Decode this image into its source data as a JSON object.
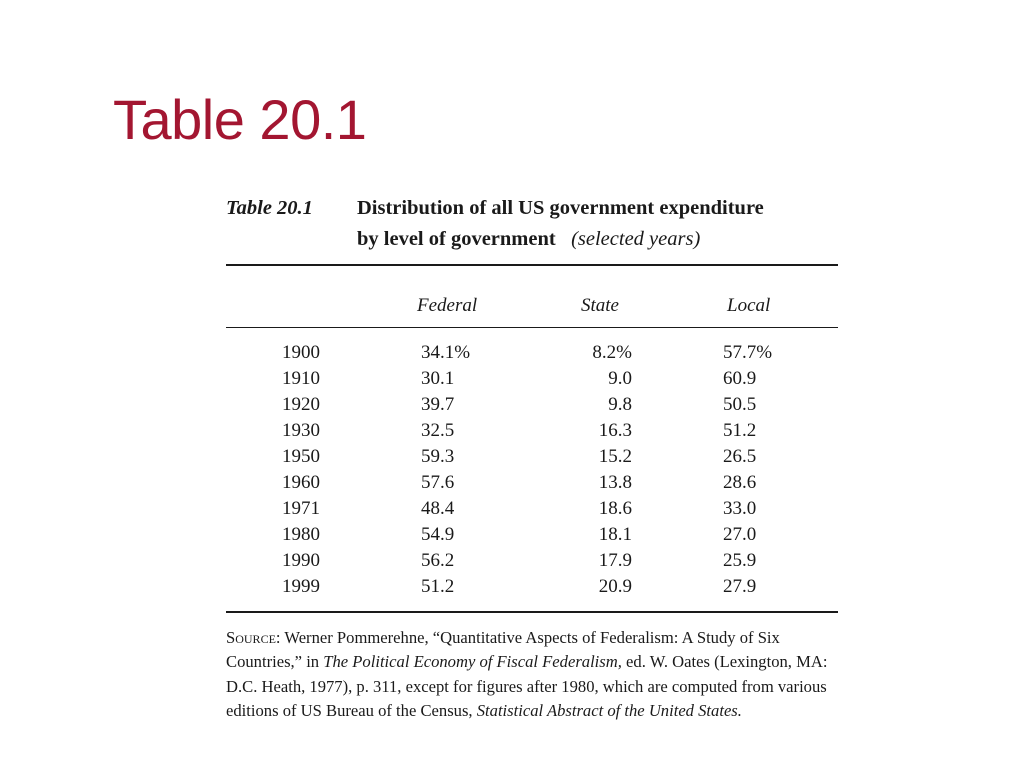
{
  "slide": {
    "title": "Table 20.1"
  },
  "table": {
    "label": "Table 20.1",
    "caption_line1": "Distribution of all US government expenditure",
    "caption_line2": "by level of government",
    "caption_qualifier": "(selected years)",
    "columns": [
      "Federal",
      "State",
      "Local"
    ],
    "rows": [
      {
        "year": "1900",
        "federal": "34.1%",
        "state": "8.2%",
        "local": "57.7%"
      },
      {
        "year": "1910",
        "federal": "30.1",
        "state": "9.0",
        "local": "60.9"
      },
      {
        "year": "1920",
        "federal": "39.7",
        "state": "9.8",
        "local": "50.5"
      },
      {
        "year": "1930",
        "federal": "32.5",
        "state": "16.3",
        "local": "51.2"
      },
      {
        "year": "1950",
        "federal": "59.3",
        "state": "15.2",
        "local": "26.5"
      },
      {
        "year": "1960",
        "federal": "57.6",
        "state": "13.8",
        "local": "28.6"
      },
      {
        "year": "1971",
        "federal": "48.4",
        "state": "18.6",
        "local": "33.0"
      },
      {
        "year": "1980",
        "federal": "54.9",
        "state": "18.1",
        "local": "27.0"
      },
      {
        "year": "1990",
        "federal": "56.2",
        "state": "17.9",
        "local": "25.9"
      },
      {
        "year": "1999",
        "federal": "51.2",
        "state": "20.9",
        "local": "27.9"
      }
    ],
    "source": {
      "label": "Source:",
      "text_1": " Werner Pommerehne, “Quantitative Aspects of Federalism: A Study of Six Countries,” in ",
      "book_title": "The Political Economy of Fiscal Federalism,",
      "text_2": " ed. W. Oates (Lexington, MA: D.C. Heath, 1977), p. 311, except for figures after 1980, which are computed from various editions of US Bureau of the Census, ",
      "publication": "Statistical Abstract of the United States."
    }
  }
}
